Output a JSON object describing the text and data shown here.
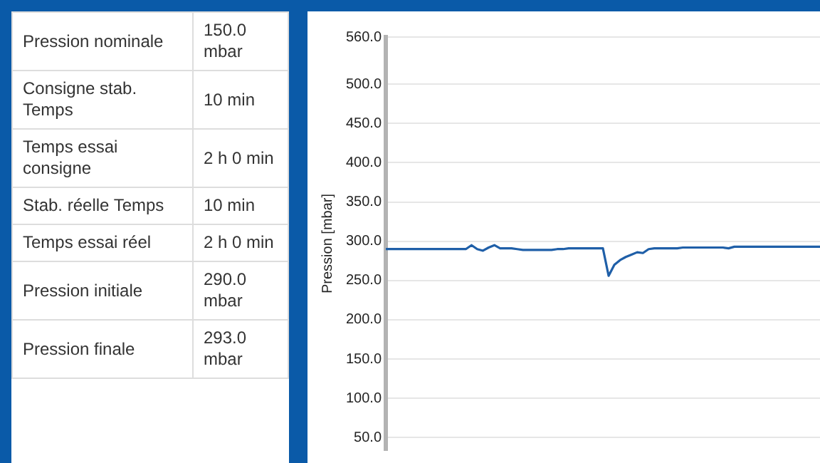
{
  "chart_data": [
    {
      "type": "other",
      "annotations": [
        "Pression nominale",
        "150.0 mbar",
        "Consigne stab. Temps",
        "10 min",
        "Temps essai consigne",
        "2 h 0 min",
        "Stab. réelle Temps",
        "10 min",
        "Temps essai réel",
        "2 h 0 min",
        "Pression initiale",
        "290.0 mbar",
        "Pression finale",
        "293.0 mbar"
      ]
    },
    {
      "type": "line",
      "ylabel": "Pression [mbar]",
      "tick_labels": "y",
      "grid": "y",
      "legend": false,
      "marker": "none",
      "categories": [
        null,
        null,
        null,
        null,
        null,
        null,
        null,
        null,
        null,
        null,
        null,
        null,
        null,
        null,
        null,
        null,
        null,
        null,
        null,
        null,
        null,
        null,
        null,
        null,
        null,
        null,
        null,
        null,
        null,
        null,
        null,
        null,
        null,
        null,
        null,
        null,
        null,
        null,
        null,
        null,
        null,
        null,
        null,
        null,
        null,
        null,
        null,
        null,
        null,
        null,
        null,
        null,
        null,
        null,
        null,
        null,
        null,
        null,
        null,
        null,
        null,
        null,
        null,
        null,
        null,
        null,
        null,
        null,
        null,
        null,
        null,
        null,
        null,
        null,
        null,
        null,
        null
      ],
      "series": [
        {
          "color": "#1f5fa8",
          "values": [
            290,
            290,
            290,
            290,
            290,
            290,
            290,
            290,
            290,
            290,
            290,
            290,
            290,
            290,
            290,
            295,
            290,
            288,
            292,
            295,
            291,
            291,
            291,
            290,
            289,
            289,
            289,
            289,
            289,
            289,
            290,
            290,
            291,
            291,
            291,
            291,
            291,
            291,
            291,
            256,
            270,
            276,
            280,
            283,
            286,
            285,
            290,
            291,
            291,
            291,
            291,
            291,
            292,
            292,
            292,
            292,
            292,
            292,
            292,
            292,
            291,
            293,
            293,
            293,
            293,
            293,
            293,
            293,
            293,
            293,
            293,
            293,
            293,
            293,
            293,
            293,
            293
          ]
        }
      ],
      "ylim": [
        34,
        560
      ],
      "yticks": [
        {
          "value": 50,
          "label": "50.0"
        },
        {
          "value": 100,
          "label": "100.0"
        },
        {
          "value": 150,
          "label": "150.0"
        },
        {
          "value": 200,
          "label": "200.0"
        },
        {
          "value": 250,
          "label": "250.0"
        },
        {
          "value": 300,
          "label": "300.0"
        },
        {
          "value": 350,
          "label": "350.0"
        },
        {
          "value": 400,
          "label": "400.0"
        },
        {
          "value": 450,
          "label": "450.0"
        },
        {
          "value": 500,
          "label": "500.0"
        },
        {
          "value": 560,
          "label": "560.0"
        }
      ]
    }
  ]
}
